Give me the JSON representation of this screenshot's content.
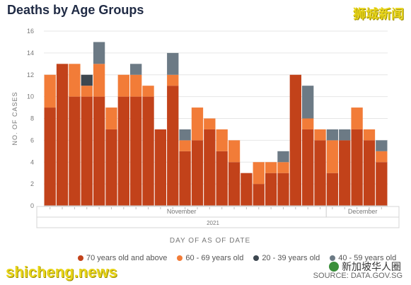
{
  "header": {
    "title": "Deaths by Age Groups",
    "watermark_top": "狮城新闻"
  },
  "footer": {
    "watermark_left": "shicheng.news",
    "brand": "新加坡华人圈",
    "source": "SOURCE: DATA.GOV.SG"
  },
  "colors": {
    "s70": "#c2421a",
    "s60": "#f27c38",
    "s20": "#3d4750",
    "s40": "#6c7a85",
    "axis_text": "#777777",
    "grid": "#e6e6e6"
  },
  "chart_data": {
    "type": "bar",
    "stacked": true,
    "title": "Deaths by Age Groups",
    "xlabel": "DAY OF AS OF DATE",
    "ylabel": "NO. OF CASES",
    "ylim": [
      0,
      16
    ],
    "yticks": [
      0,
      2,
      4,
      6,
      8,
      10,
      12,
      14,
      16
    ],
    "grid": true,
    "legend_position": "bottom",
    "month_labels": [
      "November",
      "December"
    ],
    "year_label": "2021",
    "series": [
      {
        "name": "70 years old and above",
        "color": "#c2421a",
        "values": [
          9,
          13,
          10,
          10,
          10,
          7,
          10,
          10,
          10,
          7,
          11,
          5,
          6,
          7,
          5,
          4,
          3,
          2,
          3,
          3,
          12,
          7,
          6,
          3,
          6,
          7,
          6,
          4
        ]
      },
      {
        "name": "60 - 69 years old",
        "color": "#f27c38",
        "values": [
          3,
          0,
          3,
          1,
          3,
          2,
          2,
          2,
          1,
          0,
          1,
          1,
          3,
          1,
          2,
          2,
          0,
          2,
          1,
          1,
          0,
          1,
          1,
          3,
          0,
          2,
          1,
          1
        ]
      },
      {
        "name": "20 - 39 years old",
        "color": "#3d4750",
        "values": [
          0,
          0,
          0,
          1,
          0,
          0,
          0,
          0,
          0,
          0,
          0,
          0,
          0,
          0,
          0,
          0,
          0,
          0,
          0,
          0,
          0,
          0,
          0,
          0,
          0,
          0,
          0,
          0
        ]
      },
      {
        "name": "40 - 59 years old",
        "color": "#6c7a85",
        "values": [
          0,
          0,
          0,
          0,
          2,
          0,
          0,
          1,
          0,
          0,
          2,
          1,
          0,
          0,
          0,
          0,
          0,
          0,
          0,
          1,
          0,
          3,
          0,
          1,
          1,
          0,
          0,
          1
        ]
      }
    ]
  }
}
